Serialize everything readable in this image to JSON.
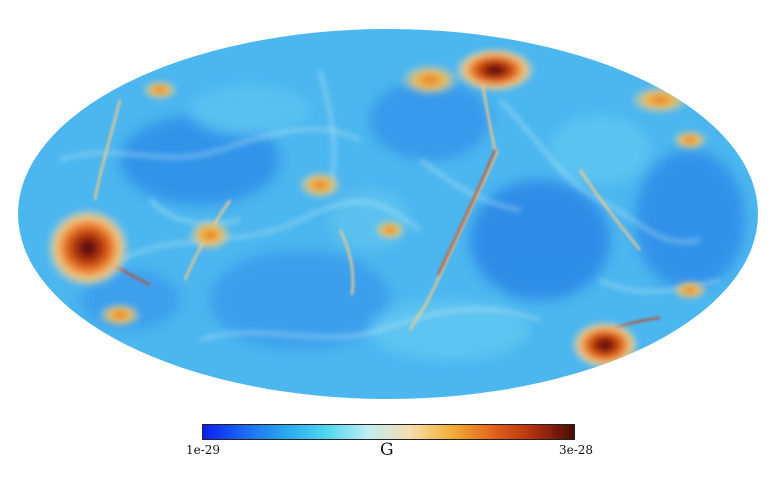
{
  "colorbar": {
    "min_label": "1e-29",
    "max_label": "3e-28",
    "quantity_label": "G",
    "colors": [
      "#0b1ff0",
      "#1a6af2",
      "#2aa7f0",
      "#4fd6ee",
      "#bfeef3",
      "#f6deb0",
      "#f4b03c",
      "#e2671b",
      "#b2300d",
      "#4a0b08"
    ]
  },
  "map": {
    "projection": "mollweide",
    "background_color": "#4cb6ef"
  }
}
